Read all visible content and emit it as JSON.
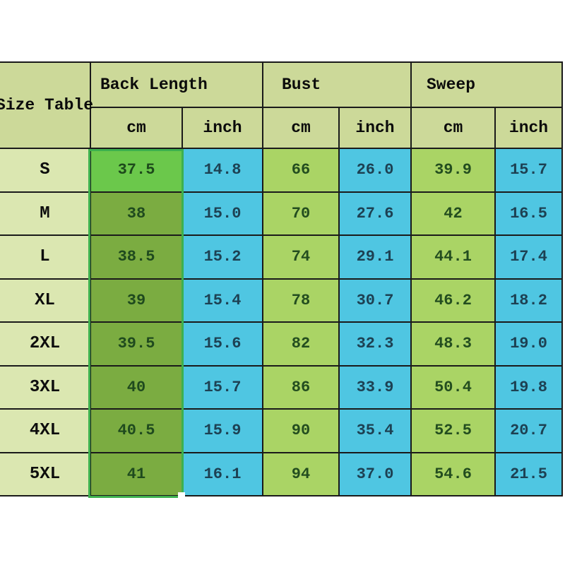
{
  "chart_data": {
    "type": "table",
    "corner_label": "Size Table",
    "groups": [
      {
        "label": "Back Length",
        "sub": [
          "cm",
          "inch"
        ]
      },
      {
        "label": "Bust",
        "sub": [
          "cm",
          "inch"
        ]
      },
      {
        "label": "Sweep",
        "sub": [
          "cm",
          "inch"
        ]
      }
    ],
    "rows": [
      {
        "size": "S",
        "values": [
          "37.5",
          "14.8",
          "66",
          "26.0",
          "39.9",
          "15.7"
        ]
      },
      {
        "size": "M",
        "values": [
          "38",
          "15.0",
          "70",
          "27.6",
          "42",
          "16.5"
        ]
      },
      {
        "size": "L",
        "values": [
          "38.5",
          "15.2",
          "74",
          "29.1",
          "44.1",
          "17.4"
        ]
      },
      {
        "size": "XL",
        "values": [
          "39",
          "15.4",
          "78",
          "30.7",
          "46.2",
          "18.2"
        ]
      },
      {
        "size": "2XL",
        "values": [
          "39.5",
          "15.6",
          "82",
          "32.3",
          "48.3",
          "19.0"
        ]
      },
      {
        "size": "3XL",
        "values": [
          "40",
          "15.7",
          "86",
          "33.9",
          "50.4",
          "19.8"
        ]
      },
      {
        "size": "4XL",
        "values": [
          "40.5",
          "15.9",
          "90",
          "35.4",
          "52.5",
          "20.7"
        ]
      },
      {
        "size": "5XL",
        "values": [
          "41",
          "16.1",
          "94",
          "37.0",
          "54.6",
          "21.5"
        ]
      }
    ],
    "selection": {
      "selected_group": "Back Length",
      "selected_sub_column": "cm",
      "active_cell_row": "S"
    }
  },
  "colors": {
    "page_bg": "#ffffff",
    "header_cell": "#ccd999",
    "size_cell": "#dbe7b1",
    "green_cell": "#aad465",
    "cyan_cell": "#4fc6e2",
    "selected_cell": "#7bac41",
    "active_cell": "#6bc84b",
    "grid_line": "#1a1a1a",
    "selection_border": "#3db04e"
  }
}
